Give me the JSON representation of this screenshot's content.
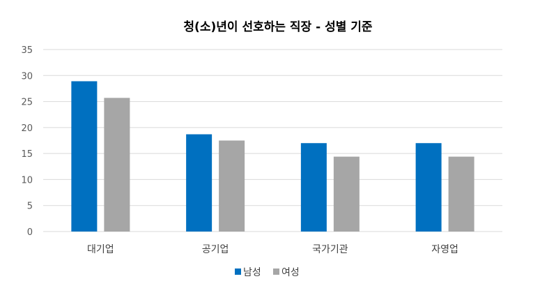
{
  "chart_data": {
    "type": "bar",
    "title": "청(소)년이 선호하는 직장 - 성별 기준",
    "categories": [
      "대기업",
      "공기업",
      "국가기관",
      "자영업"
    ],
    "series": [
      {
        "name": "남성",
        "values": [
          28.9,
          18.7,
          17.0,
          17.0
        ],
        "color": "#0070c0"
      },
      {
        "name": "여성",
        "values": [
          25.7,
          17.5,
          14.4,
          14.4
        ],
        "color": "#a6a6a6"
      }
    ],
    "ylim": [
      0,
      35
    ],
    "yticks": [
      0,
      5,
      10,
      15,
      20,
      25,
      30,
      35
    ],
    "grid": true,
    "legend": "bottom"
  }
}
